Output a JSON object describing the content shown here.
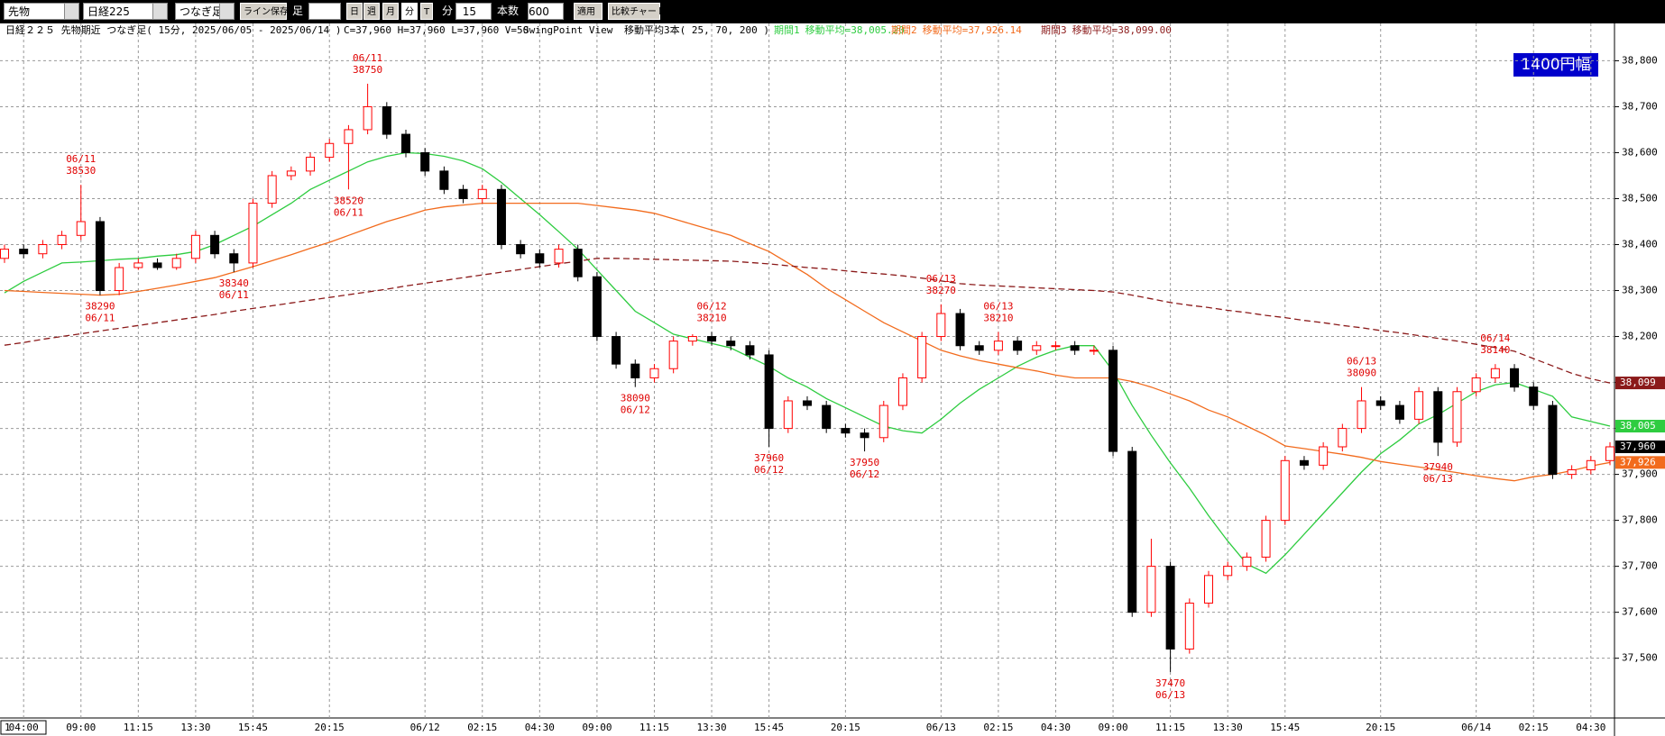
{
  "toolbar": {
    "market": "先物",
    "symbol": "日経225",
    "bar_type": "つなぎ足",
    "save_lines": "ライン保存",
    "bar_label": "足",
    "periods": [
      "日",
      "週",
      "月",
      "分",
      "T"
    ],
    "unit": "分",
    "interval": "15",
    "count_label": "本数",
    "count": "600",
    "apply": "適用",
    "compare": "比較チャート"
  },
  "chart_data": {
    "type": "candlestick",
    "title": "日経２２５ 先物期近 つなぎ足( 15分, 2025/06/05 - 2025/06/14 )",
    "quote": "C=37,960 H=37,960 L=37,960 V=50",
    "view": "SwingPoint View",
    "ma_title": "移動平均3本( 25, 70, 200 )",
    "range_box": "1400円幅",
    "page_label": "1",
    "up_color": "#ff0000",
    "down_color": "#000000",
    "close_label": "37,960",
    "categories": [
      null,
      "04:00",
      null,
      null,
      "09:00",
      null,
      null,
      "11:15",
      null,
      null,
      "13:30",
      null,
      null,
      "15:45",
      null,
      null,
      null,
      "20:15",
      null,
      null,
      null,
      null,
      "06/12",
      null,
      null,
      "02:15",
      null,
      null,
      "04:30",
      null,
      null,
      "09:00",
      null,
      null,
      "11:15",
      null,
      null,
      "13:30",
      null,
      null,
      "15:45",
      null,
      null,
      null,
      "20:15",
      null,
      null,
      null,
      null,
      "06/13",
      null,
      null,
      "02:15",
      null,
      null,
      "04:30",
      null,
      null,
      "09:00",
      null,
      null,
      "11:15",
      null,
      null,
      "13:30",
      null,
      null,
      "15:45",
      null,
      null,
      null,
      null,
      "20:15",
      null,
      null,
      null,
      null,
      "06/14",
      null,
      null,
      "02:15",
      null,
      null,
      "04:30",
      null
    ],
    "open": [
      38370,
      38390,
      38380,
      38400,
      38420,
      38450,
      38300,
      38350,
      38360,
      38350,
      38370,
      38420,
      38380,
      38360,
      38490,
      38550,
      38560,
      38590,
      38620,
      38650,
      38700,
      38640,
      38600,
      38560,
      38520,
      38500,
      38520,
      38400,
      38380,
      38360,
      38390,
      38330,
      38200,
      38140,
      38110,
      38130,
      38190,
      38200,
      38190,
      38180,
      38160,
      38000,
      38060,
      38050,
      38000,
      37990,
      37980,
      38050,
      38110,
      38200,
      38250,
      38180,
      38170,
      38190,
      38170,
      38180,
      38180,
      38170,
      38170,
      37950,
      37600,
      37700,
      37520,
      37620,
      37680,
      37700,
      37720,
      37800,
      37930,
      37920,
      37960,
      38000,
      38060,
      38050,
      38020,
      38080,
      37970,
      38080,
      38110,
      38130,
      38090,
      38050,
      37900,
      37910,
      37930
    ],
    "high": [
      38400,
      38400,
      38410,
      38430,
      38530,
      38460,
      38360,
      38370,
      38370,
      38380,
      38430,
      38430,
      38390,
      38500,
      38560,
      38570,
      38600,
      38630,
      38660,
      38750,
      38710,
      38650,
      38610,
      38570,
      38530,
      38530,
      38530,
      38410,
      38390,
      38400,
      38400,
      38340,
      38210,
      38150,
      38140,
      38200,
      38205,
      38210,
      38200,
      38190,
      38170,
      38070,
      38070,
      38060,
      38010,
      38000,
      38060,
      38120,
      38210,
      38270,
      38260,
      38190,
      38210,
      38200,
      38190,
      38190,
      38190,
      38180,
      38180,
      37960,
      37760,
      37710,
      37630,
      37690,
      37710,
      37730,
      37810,
      37940,
      37940,
      37970,
      38010,
      38090,
      38070,
      38060,
      38090,
      38090,
      38090,
      38120,
      38140,
      38140,
      38100,
      38060,
      37920,
      37940,
      37970
    ],
    "low": [
      38360,
      38370,
      38370,
      38390,
      38410,
      38290,
      38290,
      38345,
      38345,
      38345,
      38360,
      38370,
      38340,
      38350,
      38480,
      38540,
      38550,
      38580,
      38520,
      38640,
      38630,
      38590,
      38550,
      38510,
      38490,
      38490,
      38390,
      38370,
      38350,
      38350,
      38320,
      38190,
      38130,
      38090,
      38100,
      38120,
      38180,
      38180,
      38170,
      38150,
      37960,
      37990,
      38040,
      37990,
      37980,
      37950,
      37970,
      38040,
      38100,
      38190,
      38170,
      38160,
      38160,
      38160,
      38160,
      38170,
      38160,
      38160,
      37940,
      37590,
      37590,
      37470,
      37510,
      37610,
      37670,
      37690,
      37710,
      37790,
      37910,
      37910,
      37950,
      37990,
      38040,
      38010,
      38010,
      37940,
      37960,
      38070,
      38100,
      38080,
      38040,
      37890,
      37890,
      37900,
      37920
    ],
    "close": [
      38390,
      38380,
      38400,
      38420,
      38450,
      38300,
      38350,
      38360,
      38350,
      38370,
      38420,
      38380,
      38360,
      38490,
      38550,
      38560,
      38590,
      38620,
      38650,
      38700,
      38640,
      38600,
      38560,
      38520,
      38500,
      38520,
      38400,
      38380,
      38360,
      38390,
      38330,
      38200,
      38140,
      38110,
      38130,
      38190,
      38200,
      38190,
      38180,
      38160,
      38000,
      38060,
      38050,
      38000,
      37990,
      37980,
      38050,
      38110,
      38200,
      38250,
      38180,
      38170,
      38190,
      38170,
      38180,
      38180,
      38170,
      38170,
      37950,
      37600,
      37700,
      37520,
      37620,
      37680,
      37700,
      37720,
      37800,
      37930,
      37920,
      37960,
      38000,
      38060,
      38050,
      38020,
      38080,
      37970,
      38080,
      38110,
      38130,
      38090,
      38050,
      37900,
      37910,
      37930,
      37960
    ],
    "series": [
      {
        "name": "期間1",
        "label": "移動平均=38,005.20",
        "color": "#2ecc40",
        "last_value_label": "38,005",
        "values": [
          38295,
          38320,
          38340,
          38360,
          38362,
          38365,
          38368,
          38370,
          38375,
          38378,
          38385,
          38400,
          38420,
          38440,
          38465,
          38490,
          38520,
          38540,
          38560,
          38580,
          38592,
          38600,
          38598,
          38592,
          38582,
          38565,
          38535,
          38500,
          38465,
          38428,
          38390,
          38345,
          38300,
          38255,
          38230,
          38205,
          38195,
          38185,
          38175,
          38155,
          38135,
          38110,
          38090,
          38065,
          38045,
          38025,
          38005,
          37995,
          37990,
          38020,
          38055,
          38085,
          38110,
          38135,
          38155,
          38170,
          38180,
          38180,
          38125,
          38050,
          37985,
          37925,
          37870,
          37810,
          37755,
          37705,
          37685,
          37725,
          37770,
          37815,
          37860,
          37905,
          37945,
          37975,
          38010,
          38030,
          38055,
          38080,
          38095,
          38100,
          38085,
          38070,
          38025,
          38015,
          38005
        ]
      },
      {
        "name": "期間2",
        "label": "移動平均=37,926.14",
        "color": "#f26b1d",
        "last_value_label": "37,926",
        "values": [
          38300,
          38298,
          38296,
          38294,
          38292,
          38290,
          38292,
          38298,
          38305,
          38312,
          38320,
          38328,
          38340,
          38352,
          38365,
          38378,
          38392,
          38405,
          38420,
          38435,
          38450,
          38462,
          38475,
          38482,
          38486,
          38490,
          38490,
          38490,
          38490,
          38490,
          38490,
          38485,
          38480,
          38475,
          38468,
          38456,
          38444,
          38432,
          38420,
          38402,
          38385,
          38360,
          38335,
          38305,
          38280,
          38255,
          38230,
          38210,
          38190,
          38170,
          38158,
          38148,
          38140,
          38132,
          38125,
          38116,
          38110,
          38110,
          38110,
          38102,
          38090,
          38075,
          38060,
          38040,
          38025,
          38005,
          37985,
          37962,
          37956,
          37950,
          37944,
          37937,
          37928,
          37922,
          37916,
          37910,
          37904,
          37897,
          37891,
          37886,
          37895,
          37900,
          37908,
          37918,
          37926
        ]
      },
      {
        "name": "期間3",
        "label": "移動平均=38,099.00",
        "color": "#8b1a1a",
        "dashed": true,
        "last_value_label": "38,099",
        "values": [
          38181,
          38187,
          38194,
          38200,
          38206,
          38212,
          38218,
          38224,
          38230,
          38236,
          38242,
          38248,
          38255,
          38261,
          38267,
          38273,
          38279,
          38285,
          38291,
          38297,
          38303,
          38310,
          38316,
          38322,
          38328,
          38334,
          38340,
          38346,
          38352,
          38358,
          38364,
          38370,
          38370,
          38369,
          38368,
          38367,
          38366,
          38365,
          38364,
          38361,
          38358,
          38354,
          38350,
          38347,
          38343,
          38339,
          38336,
          38332,
          38327,
          38321,
          38315,
          38312,
          38310,
          38308,
          38306,
          38304,
          38302,
          38300,
          38297,
          38290,
          38282,
          38274,
          38268,
          38263,
          38257,
          38252,
          38246,
          38241,
          38235,
          38230,
          38224,
          38219,
          38213,
          38208,
          38202,
          38196,
          38190,
          38183,
          38176,
          38168,
          38152,
          38136,
          38120,
          38108,
          38099
        ]
      }
    ],
    "annotations": [
      {
        "date": "06/11",
        "price": 38530
      },
      {
        "date": "06/11",
        "price": 38290
      },
      {
        "date": "06/11",
        "price": 38340
      },
      {
        "date": "06/11",
        "price": 38520
      },
      {
        "date": "06/11",
        "price": 38750
      },
      {
        "date": "06/12",
        "price": 38090
      },
      {
        "date": "06/12",
        "price": 38210
      },
      {
        "date": "06/12",
        "price": 37960
      },
      {
        "date": "06/12",
        "price": 37950
      },
      {
        "date": "06/13",
        "price": 38270
      },
      {
        "date": "06/13",
        "price": 38210
      },
      {
        "date": "06/13",
        "price": 37470
      },
      {
        "date": "06/13",
        "price": 38090
      },
      {
        "date": "06/13",
        "price": 37940
      },
      {
        "date": "06/14",
        "price": 38140
      }
    ],
    "ylim": [
      37370,
      38842
    ],
    "yticks": [
      {
        "value": 37500,
        "label": "37,500"
      },
      {
        "value": 37600,
        "label": "37,600"
      },
      {
        "value": 37700,
        "label": "37,700"
      },
      {
        "value": 37800,
        "label": "37,800"
      },
      {
        "value": 37900,
        "label": "37,900"
      },
      {
        "value": 38000,
        "label": "38,000"
      },
      {
        "value": 38100,
        "label": "38,100"
      },
      {
        "value": 38200,
        "label": "38,200"
      },
      {
        "value": 38300,
        "label": "38,300"
      },
      {
        "value": 38400,
        "label": "38,400"
      },
      {
        "value": 38500,
        "label": "38,500"
      },
      {
        "value": 38600,
        "label": "38,600"
      },
      {
        "value": 38700,
        "label": "38,700"
      },
      {
        "value": 38800,
        "label": "38,800"
      }
    ],
    "grid": true
  }
}
